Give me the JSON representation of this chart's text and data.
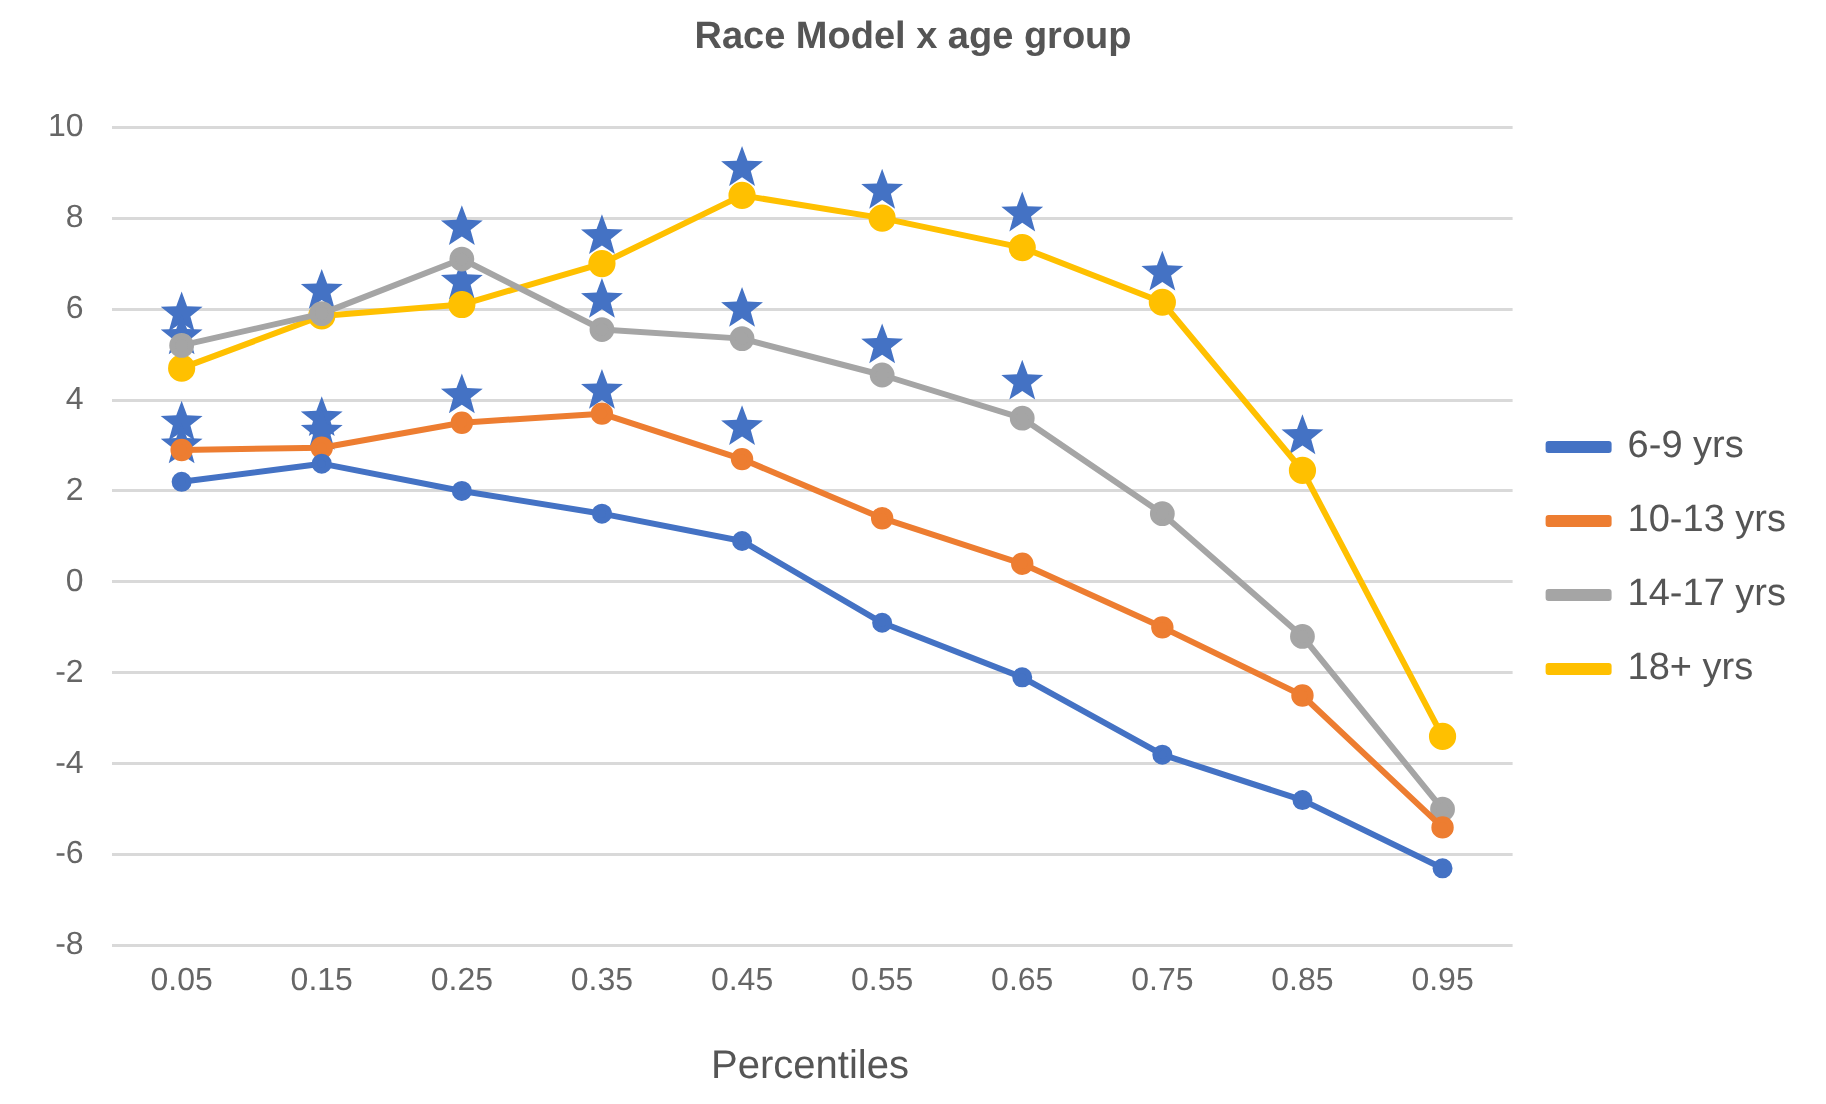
{
  "chart_data": {
    "type": "line",
    "title": "Race Model x age group",
    "xlabel": "Percentiles",
    "categories": [
      "0.05",
      "0.15",
      "0.25",
      "0.35",
      "0.45",
      "0.55",
      "0.65",
      "0.75",
      "0.85",
      "0.95"
    ],
    "series": [
      {
        "name": "6-9 yrs",
        "color": "#4472c4",
        "marker": "circle",
        "values": [
          2.2,
          2.6,
          2.0,
          1.5,
          0.9,
          -0.9,
          -2.1,
          -3.8,
          -4.8,
          -6.3
        ]
      },
      {
        "name": "10-13 yrs",
        "color": "#ed7d31",
        "marker": "circle",
        "values": [
          2.9,
          2.95,
          3.5,
          3.7,
          2.7,
          1.4,
          0.4,
          -1.0,
          -2.5,
          -5.4
        ]
      },
      {
        "name": "14-17 yrs",
        "color": "#a5a5a5",
        "marker": "circle",
        "values": [
          5.2,
          5.9,
          7.1,
          5.55,
          5.35,
          4.55,
          3.6,
          1.5,
          -1.2,
          -5.0
        ]
      },
      {
        "name": "18+ yrs",
        "color": "#ffc000",
        "marker": "circle",
        "values": [
          4.7,
          5.85,
          6.1,
          7.0,
          8.5,
          8.0,
          7.35,
          6.15,
          2.45,
          -3.4
        ]
      },
      {
        "type": "scatter",
        "color": "#4472c4",
        "marker": "star",
        "x": [
          "0.05",
          "0.05",
          "0.05",
          "0.05",
          "0.15",
          "0.15",
          "0.15",
          "0.25",
          "0.25",
          "0.25",
          "0.35",
          "0.35",
          "0.35",
          "0.45",
          "0.45",
          "0.45",
          "0.55",
          "0.55",
          "0.65",
          "0.65",
          "0.75",
          "0.85"
        ],
        "values": [
          5.9,
          5.4,
          3.5,
          3.0,
          6.4,
          3.6,
          3.3,
          7.8,
          6.6,
          4.1,
          7.6,
          6.2,
          4.2,
          9.1,
          6.0,
          3.4,
          8.6,
          5.2,
          8.1,
          4.4,
          6.8,
          3.2
        ]
      }
    ],
    "ylim": [
      -8,
      10
    ],
    "yticks": [
      -8,
      -6,
      -4,
      -2,
      0,
      2,
      4,
      6,
      8,
      10
    ],
    "grid": "y",
    "legend": "right",
    "line_style": "solid"
  }
}
